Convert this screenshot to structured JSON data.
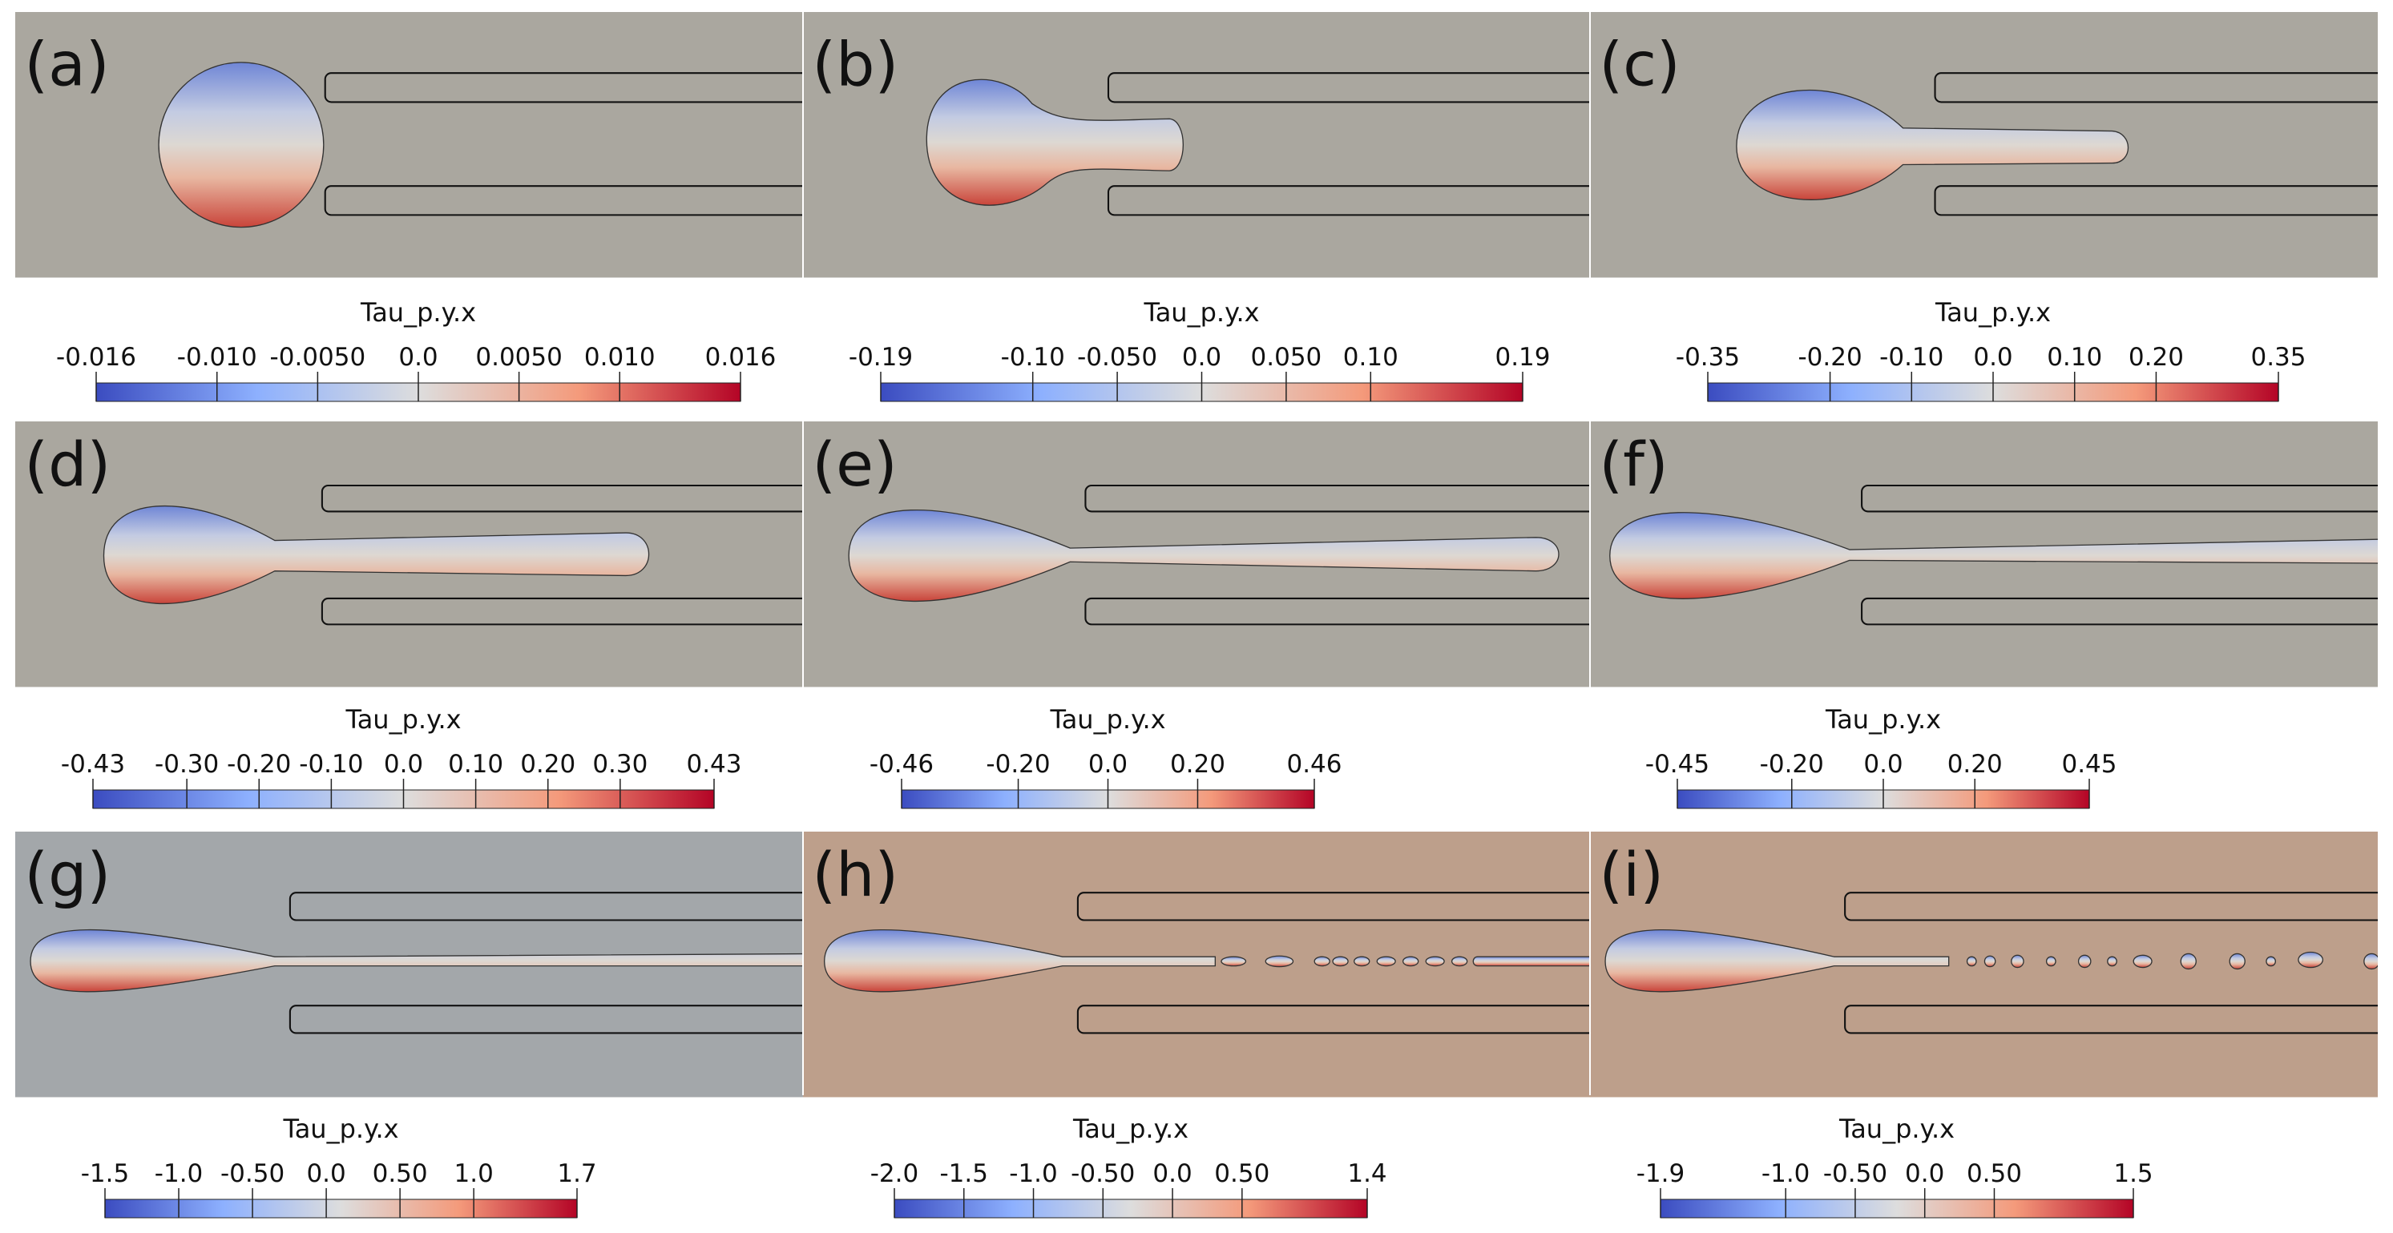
{
  "panels": [
    {
      "label": "(a)",
      "colorbar": {
        "title": "Tau_p.y.x",
        "ticks": [
          -0.016,
          {
            "value": -0.01,
            "label": "-0.010"
          },
          {
            "value": -0.005,
            "label": "-0.0050"
          },
          {
            "value": 0,
            "label": "0.0"
          },
          {
            "value": 0.005,
            "label": "0.0050"
          },
          {
            "value": 0.01,
            "label": "0.010"
          },
          0.016
        ]
      }
    },
    {
      "label": "(b)",
      "colorbar": {
        "title": "Tau_p.y.x",
        "ticks": [
          -0.19,
          {
            "value": -0.1,
            "label": "-0.10"
          },
          {
            "value": -0.05,
            "label": "-0.050"
          },
          {
            "value": 0,
            "label": "0.0"
          },
          {
            "value": 0.05,
            "label": "0.050"
          },
          {
            "value": 0.1,
            "label": "0.10"
          },
          0.19
        ]
      }
    },
    {
      "label": "(c)",
      "colorbar": {
        "title": "Tau_p.y.x",
        "ticks": [
          -0.35,
          {
            "value": -0.2,
            "label": "-0.20"
          },
          {
            "value": -0.1,
            "label": "-0.10"
          },
          {
            "value": 0,
            "label": "0.0"
          },
          {
            "value": 0.1,
            "label": "0.10"
          },
          {
            "value": 0.2,
            "label": "0.20"
          },
          0.35
        ]
      }
    },
    {
      "label": "(d)",
      "colorbar": {
        "title": "Tau_p.y.x",
        "ticks": [
          -0.43,
          {
            "value": -0.3,
            "label": "-0.30"
          },
          {
            "value": -0.2,
            "label": "-0.20"
          },
          {
            "value": -0.1,
            "label": "-0.10"
          },
          {
            "value": 0,
            "label": "0.0"
          },
          {
            "value": 0.1,
            "label": "0.10"
          },
          {
            "value": 0.2,
            "label": "0.20"
          },
          {
            "value": 0.3,
            "label": "0.30"
          },
          0.43
        ]
      }
    },
    {
      "label": "(e)",
      "colorbar": {
        "title": "Tau_p.y.x",
        "ticks": [
          -0.46,
          {
            "value": -0.2,
            "label": "-0.20"
          },
          {
            "value": 0,
            "label": "0.0"
          },
          {
            "value": 0.2,
            "label": "0.20"
          },
          0.46
        ]
      }
    },
    {
      "label": "(f)",
      "colorbar": {
        "title": "Tau_p.y.x",
        "ticks": [
          -0.45,
          {
            "value": -0.2,
            "label": "-0.20"
          },
          {
            "value": 0,
            "label": "0.0"
          },
          {
            "value": 0.2,
            "label": "0.20"
          },
          0.45
        ]
      }
    },
    {
      "label": "(g)",
      "colorbar": {
        "title": "Tau_p.y.x",
        "ticks": [
          -1.5,
          {
            "value": -1,
            "label": "-1.0"
          },
          {
            "value": -0.5,
            "label": "-0.50"
          },
          {
            "value": 0,
            "label": "0.0"
          },
          {
            "value": 0.5,
            "label": "0.50"
          },
          {
            "value": 1,
            "label": "1.0"
          },
          1.7
        ]
      }
    },
    {
      "label": "(h)",
      "colorbar": {
        "title": "Tau_p.y.x",
        "ticks": [
          {
            "value": -2,
            "label": "-2.0"
          },
          -1.5,
          {
            "value": -1,
            "label": "-1.0"
          },
          {
            "value": -0.5,
            "label": "-0.50"
          },
          {
            "value": 0,
            "label": "0.0"
          },
          {
            "value": 0.5,
            "label": "0.50"
          },
          1.4
        ]
      }
    },
    {
      "label": "(i)",
      "colorbar": {
        "title": "Tau_p.y.x",
        "ticks": [
          -1.9,
          {
            "value": -1,
            "label": "-1.0"
          },
          {
            "value": -0.5,
            "label": "-0.50"
          },
          {
            "value": 0,
            "label": "0.0"
          },
          {
            "value": 0.5,
            "label": "0.50"
          },
          1.5
        ]
      }
    }
  ]
}
